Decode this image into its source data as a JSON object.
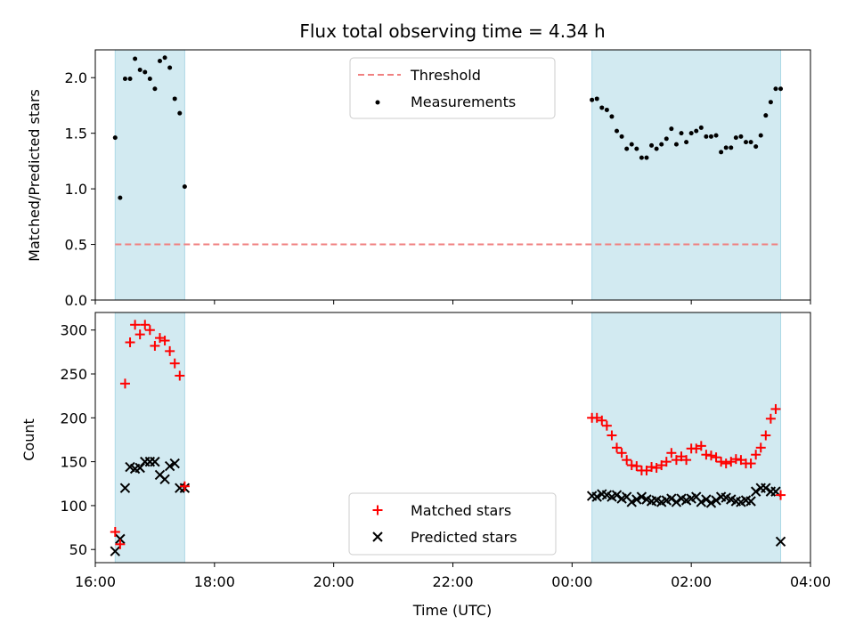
{
  "title": "Flux total observing time = 4.34 h",
  "colors": {
    "span_fill": "#add8e6",
    "threshold": "#f08080",
    "matched": "#ff0000",
    "predicted": "#000000",
    "measure": "#000000"
  },
  "chart_data": [
    {
      "type": "scatter",
      "title": "Flux total observing time = 4.34 h",
      "xlabel": "",
      "ylabel": "Matched/Predicted stars",
      "xlim": [
        "16:00",
        "04:00"
      ],
      "ylim": [
        0,
        2.25
      ],
      "y_ticks": [
        0.0,
        0.5,
        1.0,
        1.5,
        2.0
      ],
      "y_tick_labels": [
        "0.0",
        "0.5",
        "1.0",
        "1.5",
        "2.0"
      ],
      "grid": false,
      "legend": "upper center",
      "shaded_spans": [
        [
          "16:20",
          "17:30"
        ],
        [
          "00:20",
          "03:30"
        ]
      ],
      "series": [
        {
          "name": "Threshold",
          "kind": "dashed line",
          "x": [
            "16:20",
            "03:30"
          ],
          "y": [
            0.5,
            0.5
          ]
        },
        {
          "name": "Measurements",
          "kind": "points",
          "x": [
            "16:20",
            "16:25",
            "16:30",
            "16:35",
            "16:40",
            "16:45",
            "16:50",
            "16:55",
            "17:00",
            "17:05",
            "17:10",
            "17:15",
            "17:20",
            "17:25",
            "17:30",
            "00:20",
            "00:25",
            "00:30",
            "00:35",
            "00:40",
            "00:45",
            "00:50",
            "00:55",
            "01:00",
            "01:05",
            "01:10",
            "01:15",
            "01:20",
            "01:25",
            "01:30",
            "01:35",
            "01:40",
            "01:45",
            "01:50",
            "01:55",
            "02:00",
            "02:05",
            "02:10",
            "02:15",
            "02:20",
            "02:25",
            "02:30",
            "02:35",
            "02:40",
            "02:45",
            "02:50",
            "02:55",
            "03:00",
            "03:05",
            "03:10",
            "03:15",
            "03:20",
            "03:25",
            "03:30"
          ],
          "y": [
            1.46,
            0.92,
            1.99,
            1.99,
            2.17,
            2.07,
            2.05,
            1.99,
            1.9,
            2.15,
            2.18,
            2.09,
            1.81,
            1.68,
            1.02,
            1.8,
            1.81,
            1.73,
            1.71,
            1.65,
            1.52,
            1.47,
            1.36,
            1.4,
            1.36,
            1.28,
            1.28,
            1.39,
            1.36,
            1.4,
            1.45,
            1.54,
            1.4,
            1.5,
            1.42,
            1.5,
            1.52,
            1.55,
            1.47,
            1.47,
            1.48,
            1.33,
            1.37,
            1.37,
            1.46,
            1.47,
            1.42,
            1.42,
            1.38,
            1.48,
            1.66,
            1.78,
            1.9,
            1.9
          ]
        }
      ]
    },
    {
      "type": "scatter",
      "xlabel": "Time (UTC)",
      "ylabel": "Count",
      "xlim": [
        "16:00",
        "04:00"
      ],
      "x_ticks": [
        "16:00",
        "18:00",
        "20:00",
        "22:00",
        "00:00",
        "02:00",
        "04:00"
      ],
      "ylim": [
        35,
        320
      ],
      "y_ticks": [
        50,
        100,
        150,
        200,
        250,
        300
      ],
      "y_tick_labels": [
        "50",
        "100",
        "150",
        "200",
        "250",
        "300"
      ],
      "grid": false,
      "legend": "lower center",
      "shaded_spans": [
        [
          "16:20",
          "17:30"
        ],
        [
          "00:20",
          "03:30"
        ]
      ],
      "series": [
        {
          "name": "Matched stars",
          "kind": "plus markers",
          "x": [
            "16:20",
            "16:25",
            "16:30",
            "16:35",
            "16:40",
            "16:45",
            "16:50",
            "16:55",
            "17:00",
            "17:05",
            "17:10",
            "17:15",
            "17:20",
            "17:25",
            "17:30",
            "00:20",
            "00:25",
            "00:30",
            "00:35",
            "00:40",
            "00:45",
            "00:50",
            "00:55",
            "01:00",
            "01:05",
            "01:10",
            "01:15",
            "01:20",
            "01:25",
            "01:30",
            "01:35",
            "01:40",
            "01:45",
            "01:50",
            "01:55",
            "02:00",
            "02:05",
            "02:10",
            "02:15",
            "02:20",
            "02:25",
            "02:30",
            "02:35",
            "02:40",
            "02:45",
            "02:50",
            "02:55",
            "03:00",
            "03:05",
            "03:10",
            "03:15",
            "03:20",
            "03:25",
            "03:30"
          ],
          "y": [
            70,
            56,
            239,
            286,
            306,
            295,
            306,
            300,
            282,
            291,
            288,
            276,
            262,
            248,
            122,
            200,
            200,
            197,
            191,
            180,
            166,
            160,
            152,
            146,
            145,
            140,
            140,
            144,
            143,
            146,
            150,
            160,
            152,
            156,
            152,
            165,
            165,
            168,
            158,
            157,
            155,
            150,
            148,
            150,
            153,
            152,
            148,
            148,
            158,
            166,
            180,
            199,
            210,
            112
          ]
        },
        {
          "name": "Predicted stars",
          "kind": "x markers",
          "x": [
            "16:20",
            "16:25",
            "16:30",
            "16:35",
            "16:40",
            "16:45",
            "16:50",
            "16:55",
            "17:00",
            "17:05",
            "17:10",
            "17:15",
            "17:20",
            "17:25",
            "17:30",
            "00:20",
            "00:25",
            "00:30",
            "00:35",
            "00:40",
            "00:45",
            "00:50",
            "00:55",
            "01:00",
            "01:05",
            "01:10",
            "01:15",
            "01:20",
            "01:25",
            "01:30",
            "01:35",
            "01:40",
            "01:45",
            "01:50",
            "01:55",
            "02:00",
            "02:05",
            "02:10",
            "02:15",
            "02:20",
            "02:25",
            "02:30",
            "02:35",
            "02:40",
            "02:45",
            "02:50",
            "02:55",
            "03:00",
            "03:05",
            "03:10",
            "03:15",
            "03:20",
            "03:25",
            "03:30"
          ],
          "y": [
            48,
            62,
            120,
            144,
            142,
            143,
            150,
            150,
            150,
            135,
            130,
            145,
            148,
            120,
            120,
            111,
            110,
            113,
            112,
            110,
            112,
            108,
            110,
            104,
            107,
            110,
            107,
            105,
            106,
            104,
            106,
            108,
            104,
            108,
            106,
            108,
            110,
            104,
            107,
            103,
            106,
            110,
            109,
            107,
            105,
            104,
            106,
            105,
            116,
            120,
            120,
            116,
            116,
            59
          ]
        }
      ]
    }
  ]
}
